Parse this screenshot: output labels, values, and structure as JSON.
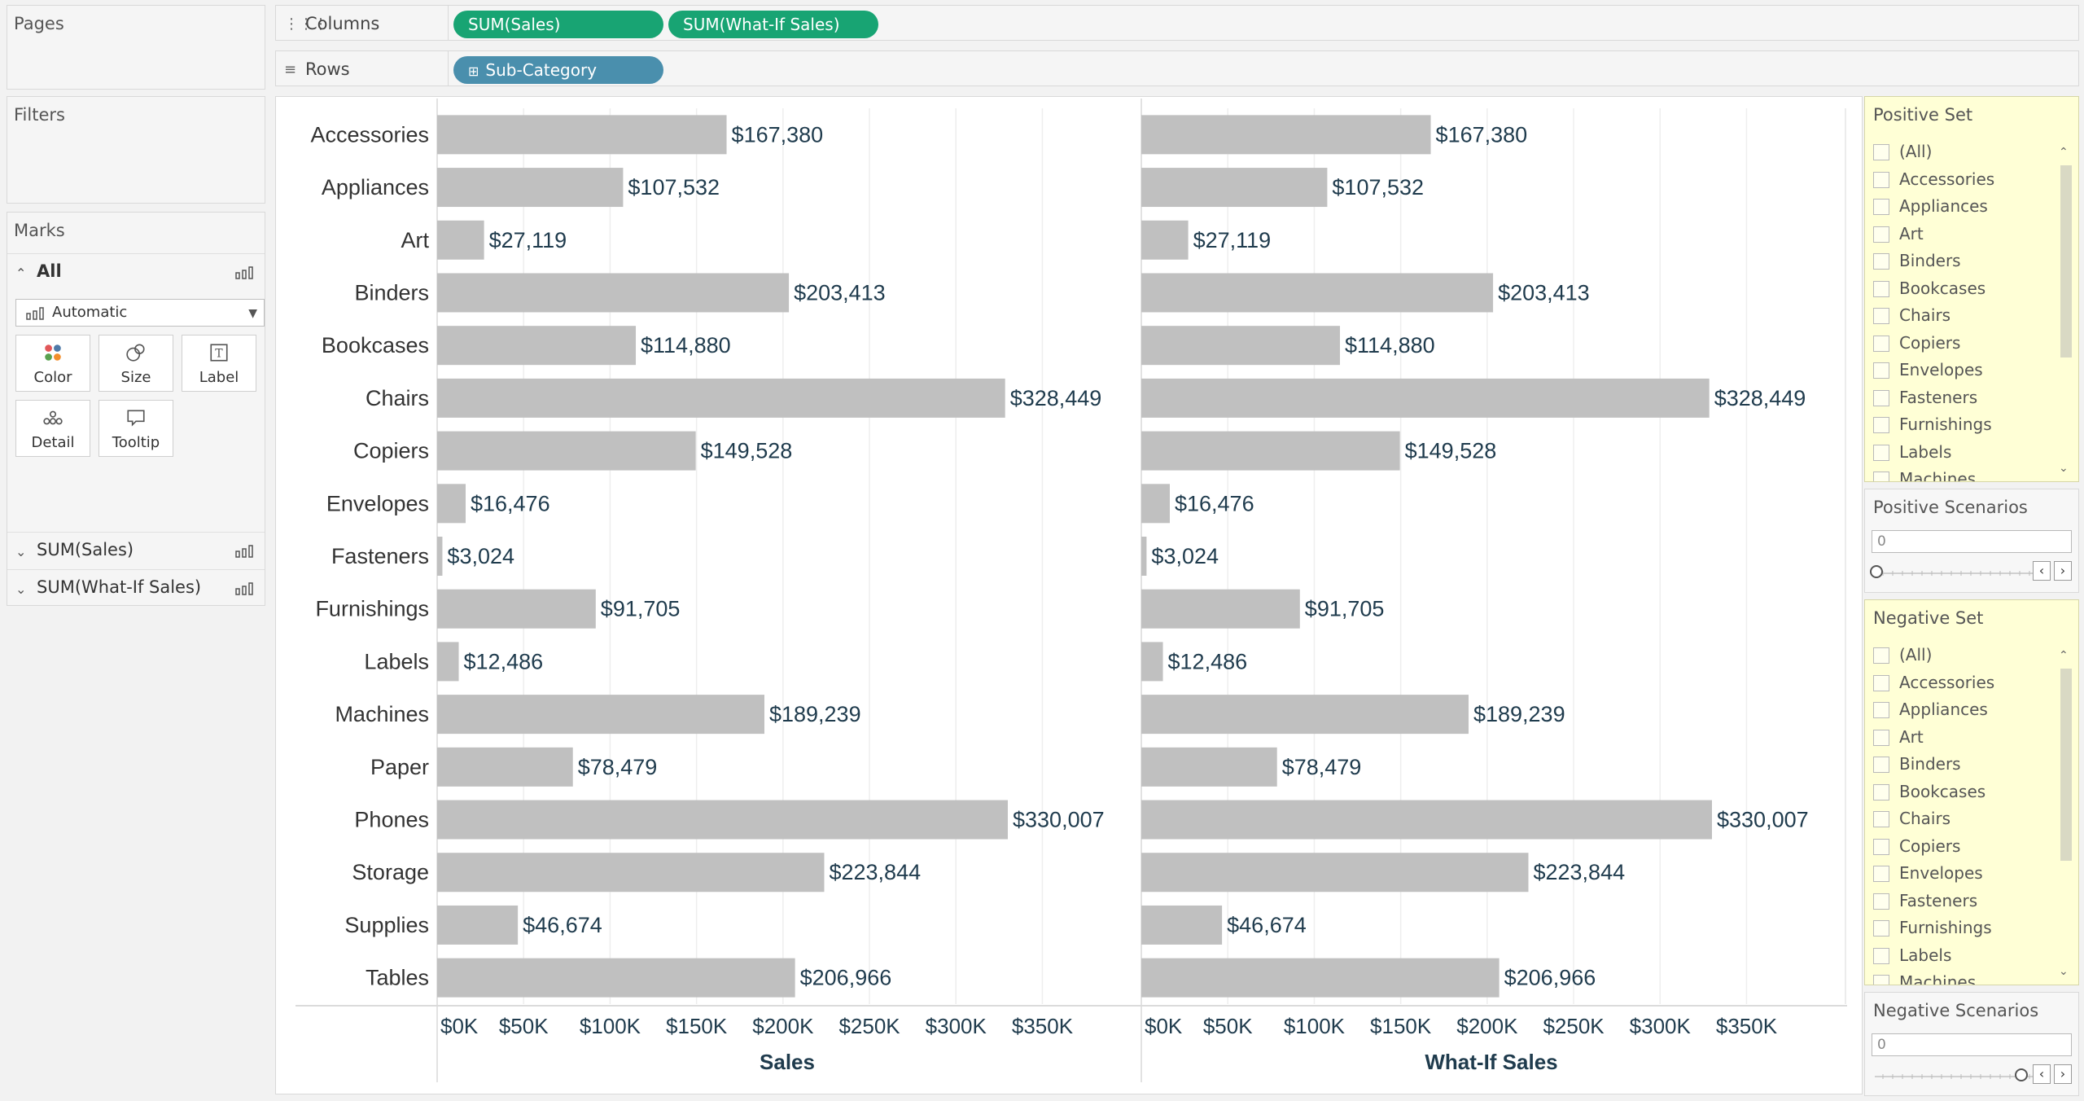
{
  "pages_panel": {
    "title": "Pages"
  },
  "filters_panel": {
    "title": "Filters"
  },
  "marks_panel": {
    "title": "Marks",
    "all_label": "All",
    "mark_type": "Automatic",
    "buttons": [
      "Color",
      "Size",
      "Label",
      "Detail",
      "Tooltip"
    ],
    "measures": [
      "SUM(Sales)",
      "SUM(What-If Sales)"
    ]
  },
  "shelves": {
    "columns_label": "Columns",
    "columns_pills": [
      "SUM(Sales)",
      "SUM(What-If Sales)"
    ],
    "rows_label": "Rows",
    "rows_pills": [
      "Sub-Category"
    ]
  },
  "chart_data": {
    "type": "bar",
    "orientation": "horizontal",
    "categories": [
      "Accessories",
      "Appliances",
      "Art",
      "Binders",
      "Bookcases",
      "Chairs",
      "Copiers",
      "Envelopes",
      "Fasteners",
      "Furnishings",
      "Labels",
      "Machines",
      "Paper",
      "Phones",
      "Storage",
      "Supplies",
      "Tables"
    ],
    "series": [
      {
        "name": "Sales",
        "values": [
          167380,
          107532,
          27119,
          203413,
          114880,
          328449,
          149528,
          16476,
          3024,
          91705,
          12486,
          189239,
          78479,
          330007,
          223844,
          46674,
          206966
        ]
      },
      {
        "name": "What-If Sales",
        "values": [
          167380,
          107532,
          27119,
          203413,
          114880,
          328449,
          149528,
          16476,
          3024,
          91705,
          12486,
          189239,
          78479,
          330007,
          223844,
          46674,
          206966
        ]
      }
    ],
    "value_labels": [
      [
        "$167,380",
        "$107,532",
        "$27,119",
        "$203,413",
        "$114,880",
        "$328,449",
        "$149,528",
        "$16,476",
        "$3,024",
        "$91,705",
        "$12,486",
        "$189,239",
        "$78,479",
        "$330,007",
        "$223,844",
        "$46,674",
        "$206,966"
      ],
      [
        "$167,380",
        "$107,532",
        "$27,119",
        "$203,413",
        "$114,880",
        "$328,449",
        "$149,528",
        "$16,476",
        "$3,024",
        "$91,705",
        "$12,486",
        "$189,239",
        "$78,479",
        "$330,007",
        "$223,844",
        "$46,674",
        "$206,966"
      ]
    ],
    "x_ticks": [
      0,
      50000,
      100000,
      150000,
      200000,
      250000,
      300000,
      350000
    ],
    "x_tick_labels": [
      "$0K",
      "$50K",
      "$100K",
      "$150K",
      "$200K",
      "$250K",
      "$300K",
      "$350K"
    ],
    "xlim": [
      0,
      390000
    ],
    "xlabels": [
      "Sales",
      "What-If Sales"
    ],
    "grid": true,
    "bar_color": "#c0c0c0",
    "label_color": "#1f3b4d"
  },
  "positive_set": {
    "title": "Positive Set",
    "items": [
      "(All)",
      "Accessories",
      "Appliances",
      "Art",
      "Binders",
      "Bookcases",
      "Chairs",
      "Copiers",
      "Envelopes",
      "Fasteners",
      "Furnishings",
      "Labels",
      "Machines"
    ]
  },
  "positive_scenarios": {
    "title": "Positive Scenarios",
    "value": "0"
  },
  "negative_set": {
    "title": "Negative Set",
    "items": [
      "(All)",
      "Accessories",
      "Appliances",
      "Art",
      "Binders",
      "Bookcases",
      "Chairs",
      "Copiers",
      "Envelopes",
      "Fasteners",
      "Furnishings",
      "Labels",
      "Machines"
    ]
  },
  "negative_scenarios": {
    "title": "Negative Scenarios",
    "value": "0"
  },
  "colors": {
    "pill_green": "#18a473",
    "pill_blue": "#4a8fad",
    "filter_card_bg": "#ffffd6"
  }
}
